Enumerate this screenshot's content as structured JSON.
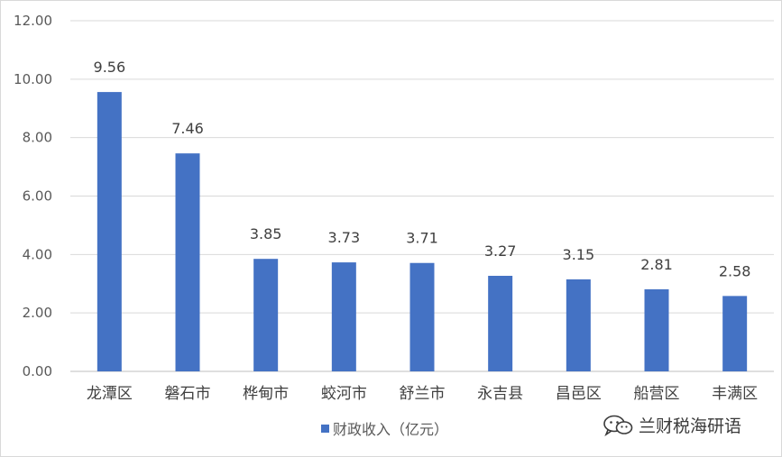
{
  "chart_data": {
    "type": "bar",
    "categories": [
      "龙潭区",
      "磐石市",
      "桦甸市",
      "蛟河市",
      "舒兰市",
      "永吉县",
      "昌邑区",
      "船营区",
      "丰满区"
    ],
    "series": [
      {
        "name": "财政收入（亿元）",
        "values": [
          9.56,
          7.46,
          3.85,
          3.73,
          3.71,
          3.27,
          3.15,
          2.81,
          2.58
        ],
        "color": "#4472c4"
      }
    ],
    "data_labels": [
      "9.56",
      "7.46",
      "3.85",
      "3.73",
      "3.71",
      "3.27",
      "3.15",
      "2.81",
      "2.58"
    ],
    "ylim": [
      0,
      12
    ],
    "yticks": [
      "0.00",
      "2.00",
      "4.00",
      "6.00",
      "8.00",
      "10.00",
      "12.00"
    ],
    "grid": true,
    "legend_position": "bottom"
  },
  "watermark": {
    "text": "兰财税海研语",
    "icon": "wechat-icon"
  }
}
